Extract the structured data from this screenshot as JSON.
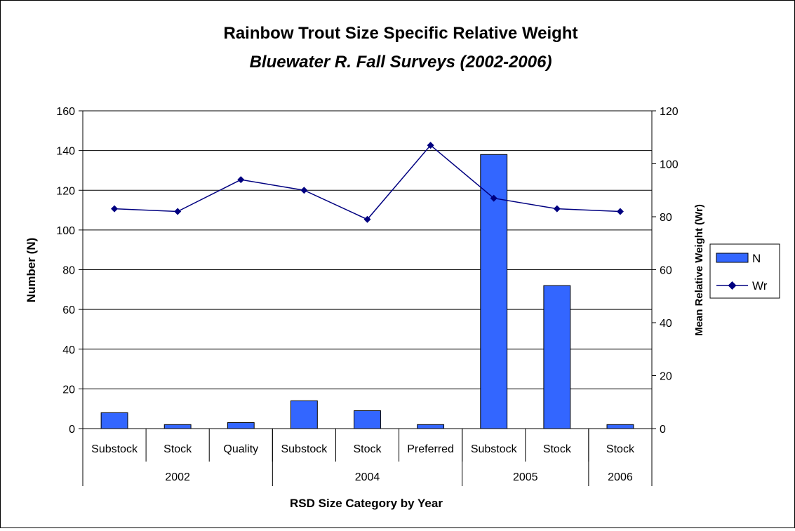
{
  "chart_data": {
    "type": "bar",
    "title": "Rainbow Trout Size Specific Relative Weight",
    "subtitle": "Bluewater R. Fall Surveys (2002-2006)",
    "xlabel": "RSD Size Category by Year",
    "ylabel": "Number (N)",
    "y2label": "Mean Relative Weight (Wr)",
    "ylim": [
      0,
      160
    ],
    "y2lim": [
      0,
      120
    ],
    "yticks": [
      0,
      20,
      40,
      60,
      80,
      100,
      120,
      140,
      160
    ],
    "y2ticks": [
      0,
      20,
      40,
      60,
      80,
      100,
      120
    ],
    "categories": [
      "Substock",
      "Stock",
      "Quality",
      "Substock",
      "Stock",
      "Preferred",
      "Substock",
      "Stock",
      "Stock"
    ],
    "groups": [
      {
        "label": "2002",
        "count": 3
      },
      {
        "label": "2004",
        "count": 3
      },
      {
        "label": "2005",
        "count": 2
      },
      {
        "label": "2006",
        "count": 1
      }
    ],
    "series": [
      {
        "name": "N",
        "type": "bar",
        "axis": "left",
        "color": "#3366FF",
        "values": [
          8,
          2,
          3,
          14,
          9,
          2,
          138,
          72,
          2
        ]
      },
      {
        "name": "Wr",
        "type": "line",
        "axis": "right",
        "color": "#000080",
        "marker": "diamond",
        "values": [
          83,
          82,
          94,
          90,
          79,
          107,
          87,
          83,
          82
        ]
      }
    ],
    "grid": true,
    "legend": "right"
  }
}
